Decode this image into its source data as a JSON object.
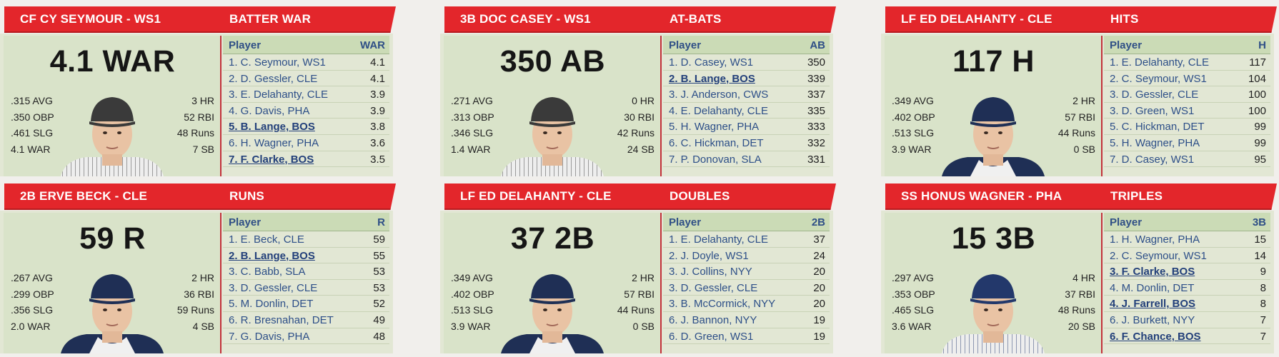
{
  "cards": [
    {
      "player": "CF CY SEYMOUR - WS1",
      "stat_title": "BATTER WAR",
      "big_stat": "4.1 WAR",
      "left_stats": [
        ".315 AVG",
        ".350 OBP",
        ".461 SLG",
        "4.1 WAR"
      ],
      "right_stats": [
        "3 HR",
        "52 RBI",
        "48 Runs",
        "7 SB"
      ],
      "col_player": "Player",
      "col_stat": "WAR",
      "jersey": "pinstripe",
      "cap": "#3a3a3a",
      "rows": [
        {
          "name": "1. C. Seymour, WS1",
          "value": "4.1",
          "hi": false
        },
        {
          "name": "2. D. Gessler, CLE",
          "value": "4.1",
          "hi": false
        },
        {
          "name": "3. E. Delahanty, CLE",
          "value": "3.9",
          "hi": false
        },
        {
          "name": "4. G. Davis, PHA",
          "value": "3.9",
          "hi": false
        },
        {
          "name": "5. B. Lange, BOS",
          "value": "3.8",
          "hi": true
        },
        {
          "name": "6. H. Wagner, PHA",
          "value": "3.6",
          "hi": false
        },
        {
          "name": "7. F. Clarke, BOS",
          "value": "3.5",
          "hi": true
        }
      ]
    },
    {
      "player": "3B DOC CASEY - WS1",
      "stat_title": "AT-BATS",
      "big_stat": "350 AB",
      "left_stats": [
        ".271 AVG",
        ".313 OBP",
        ".346 SLG",
        "1.4 WAR"
      ],
      "right_stats": [
        "0 HR",
        "30 RBI",
        "42 Runs",
        "24 SB"
      ],
      "col_player": "Player",
      "col_stat": "AB",
      "jersey": "pinstripe",
      "cap": "#3a3a3a",
      "rows": [
        {
          "name": "1. D. Casey, WS1",
          "value": "350",
          "hi": false
        },
        {
          "name": "2. B. Lange, BOS",
          "value": "339",
          "hi": true
        },
        {
          "name": "3. J. Anderson, CWS",
          "value": "337",
          "hi": false
        },
        {
          "name": "4. E. Delahanty, CLE",
          "value": "335",
          "hi": false
        },
        {
          "name": "5. H. Wagner, PHA",
          "value": "333",
          "hi": false
        },
        {
          "name": "6. C. Hickman, DET",
          "value": "332",
          "hi": false
        },
        {
          "name": "7. P. Donovan, SLA",
          "value": "331",
          "hi": false
        }
      ]
    },
    {
      "player": "LF ED DELAHANTY - CLE",
      "stat_title": "HITS",
      "big_stat": "117 H",
      "left_stats": [
        ".349 AVG",
        ".402 OBP",
        ".513 SLG",
        "3.9 WAR"
      ],
      "right_stats": [
        "2 HR",
        "57 RBI",
        "44 Runs",
        "0 SB"
      ],
      "col_player": "Player",
      "col_stat": "H",
      "jersey": "navy",
      "cap": "#1f2f55",
      "rows": [
        {
          "name": "1. E. Delahanty, CLE",
          "value": "117",
          "hi": false
        },
        {
          "name": "2. C. Seymour, WS1",
          "value": "104",
          "hi": false
        },
        {
          "name": "3. D. Gessler, CLE",
          "value": "100",
          "hi": false
        },
        {
          "name": "3. D. Green, WS1",
          "value": "100",
          "hi": false
        },
        {
          "name": "5. C. Hickman, DET",
          "value": "99",
          "hi": false
        },
        {
          "name": "5. H. Wagner, PHA",
          "value": "99",
          "hi": false
        },
        {
          "name": "7. D. Casey, WS1",
          "value": "95",
          "hi": false
        }
      ]
    },
    {
      "player": "2B ERVE BECK - CLE",
      "stat_title": "RUNS",
      "big_stat": "59 R",
      "left_stats": [
        ".267 AVG",
        ".299 OBP",
        ".356 SLG",
        "2.0 WAR"
      ],
      "right_stats": [
        "2 HR",
        "36 RBI",
        "59 Runs",
        "4 SB"
      ],
      "col_player": "Player",
      "col_stat": "R",
      "jersey": "navy",
      "cap": "#1f2f55",
      "rows": [
        {
          "name": "1. E. Beck, CLE",
          "value": "59",
          "hi": false
        },
        {
          "name": "2. B. Lange, BOS",
          "value": "55",
          "hi": true
        },
        {
          "name": "3. C. Babb, SLA",
          "value": "53",
          "hi": false
        },
        {
          "name": "3. D. Gessler, CLE",
          "value": "53",
          "hi": false
        },
        {
          "name": "5. M. Donlin, DET",
          "value": "52",
          "hi": false
        },
        {
          "name": "6. R. Bresnahan, DET",
          "value": "49",
          "hi": false
        },
        {
          "name": "7. G. Davis, PHA",
          "value": "48",
          "hi": false
        }
      ]
    },
    {
      "player": "LF ED DELAHANTY - CLE",
      "stat_title": "DOUBLES",
      "big_stat": "37 2B",
      "left_stats": [
        ".349 AVG",
        ".402 OBP",
        ".513 SLG",
        "3.9 WAR"
      ],
      "right_stats": [
        "2 HR",
        "57 RBI",
        "44 Runs",
        "0 SB"
      ],
      "col_player": "Player",
      "col_stat": "2B",
      "jersey": "navy",
      "cap": "#1f2f55",
      "rows": [
        {
          "name": "1. E. Delahanty, CLE",
          "value": "37",
          "hi": false
        },
        {
          "name": "2. J. Doyle, WS1",
          "value": "24",
          "hi": false
        },
        {
          "name": "3. J. Collins, NYY",
          "value": "20",
          "hi": false
        },
        {
          "name": "3. D. Gessler, CLE",
          "value": "20",
          "hi": false
        },
        {
          "name": "3. B. McCormick, NYY",
          "value": "20",
          "hi": false
        },
        {
          "name": "6. J. Bannon, NYY",
          "value": "19",
          "hi": false
        },
        {
          "name": "6. D. Green, WS1",
          "value": "19",
          "hi": false
        }
      ]
    },
    {
      "player": "SS HONUS WAGNER - PHA",
      "stat_title": "TRIPLES",
      "big_stat": "15 3B",
      "left_stats": [
        ".297 AVG",
        ".353 OBP",
        ".465 SLG",
        "3.6 WAR"
      ],
      "right_stats": [
        "4 HR",
        "37 RBI",
        "48 Runs",
        "20 SB"
      ],
      "col_player": "Player",
      "col_stat": "3B",
      "jersey": "pinstripe-navy",
      "cap": "#23386b",
      "rows": [
        {
          "name": "1. H. Wagner, PHA",
          "value": "15",
          "hi": false
        },
        {
          "name": "2. C. Seymour, WS1",
          "value": "14",
          "hi": false
        },
        {
          "name": "3. F. Clarke, BOS",
          "value": "9",
          "hi": true
        },
        {
          "name": "4. M. Donlin, DET",
          "value": "8",
          "hi": false
        },
        {
          "name": "4. J. Farrell, BOS",
          "value": "8",
          "hi": true
        },
        {
          "name": "6. J. Burkett, NYY",
          "value": "7",
          "hi": false
        },
        {
          "name": "6. F. Chance, BOS",
          "value": "7",
          "hi": true
        }
      ]
    }
  ]
}
